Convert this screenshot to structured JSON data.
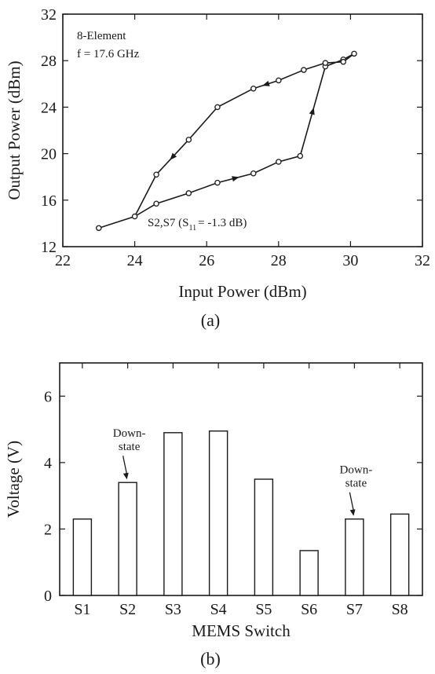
{
  "chart_data": [
    {
      "panel_label": "(a)",
      "type": "line",
      "xlabel": "Input Power (dBm)",
      "ylabel": "Output Power (dBm)",
      "xlim": [
        22,
        32
      ],
      "ylim": [
        12,
        32
      ],
      "xticks": [
        22,
        24,
        26,
        28,
        30,
        32
      ],
      "yticks": [
        12,
        16,
        20,
        24,
        28,
        32
      ],
      "annotations": [
        {
          "id": "element",
          "text": "8-Element"
        },
        {
          "id": "freq",
          "text": "f = 17.6 GHz"
        },
        {
          "id": "switch_main",
          "text": "S2,S7 (S"
        },
        {
          "id": "switch_sub",
          "text": "11"
        },
        {
          "id": "switch_tail",
          "text": "= -1.3 dB)"
        }
      ],
      "series": [
        {
          "direction": "increasing",
          "x": [
            23.0,
            24.0,
            24.6,
            25.5,
            26.3,
            27.3,
            28.0,
            28.6,
            29.3,
            29.8,
            30.1
          ],
          "y": [
            13.6,
            14.6,
            15.7,
            16.6,
            17.5,
            18.3,
            19.3,
            19.8,
            27.5,
            28.1,
            28.6
          ]
        },
        {
          "direction": "decreasing",
          "x": [
            30.1,
            29.8,
            29.3,
            28.7,
            28.0,
            27.3,
            26.3,
            25.5,
            24.6,
            24.0
          ],
          "y": [
            28.6,
            27.9,
            27.8,
            27.2,
            26.3,
            25.6,
            24.0,
            21.2,
            18.2,
            14.6
          ]
        }
      ],
      "grid": false
    },
    {
      "panel_label": "(b)",
      "type": "bar",
      "xlabel": "MEMS Switch",
      "ylabel": "Voltage (V)",
      "ylim": [
        0,
        7
      ],
      "yticks": [
        0,
        2,
        4,
        6
      ],
      "categories": [
        "S1",
        "S2",
        "S3",
        "S4",
        "S5",
        "S6",
        "S7",
        "S8"
      ],
      "values": [
        2.3,
        3.4,
        4.9,
        4.95,
        3.5,
        1.35,
        2.3,
        2.45
      ],
      "annotations": [
        {
          "target": "S2",
          "lines": [
            "Down-",
            "state"
          ]
        },
        {
          "target": "S7",
          "lines": [
            "Down-",
            "state"
          ]
        }
      ],
      "grid": false
    }
  ]
}
